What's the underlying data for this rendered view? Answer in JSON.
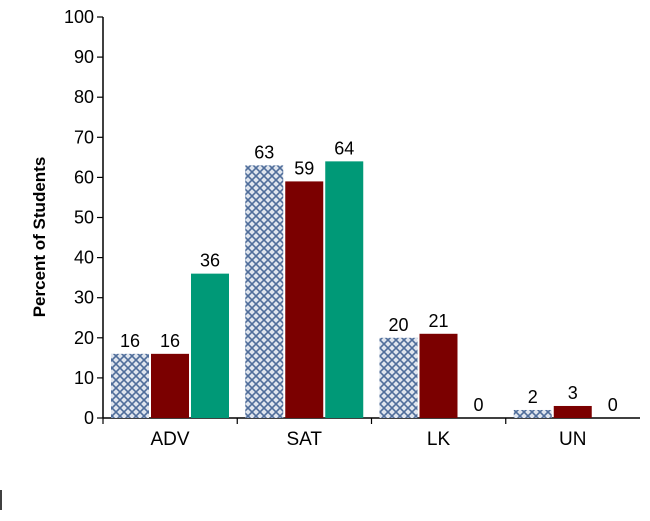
{
  "chart_data": {
    "type": "bar",
    "categories": [
      "ADV",
      "SAT",
      "LK",
      "UN"
    ],
    "series": [
      {
        "values": [
          16,
          63,
          20,
          2
        ],
        "color": "#4f6d9a",
        "pattern": "crosshatch"
      },
      {
        "values": [
          16,
          59,
          21,
          3
        ],
        "color": "#7b0000"
      },
      {
        "values": [
          36,
          64,
          0,
          0
        ],
        "color": "#009977"
      }
    ],
    "xlabel": "",
    "ylabel": "Percent of Students",
    "ylim": [
      0,
      100
    ],
    "yticks": [
      "0",
      "10",
      "20",
      "30",
      "40",
      "50",
      "60",
      "70",
      "80",
      "90",
      "100"
    ],
    "grid": false,
    "legend": "none"
  }
}
